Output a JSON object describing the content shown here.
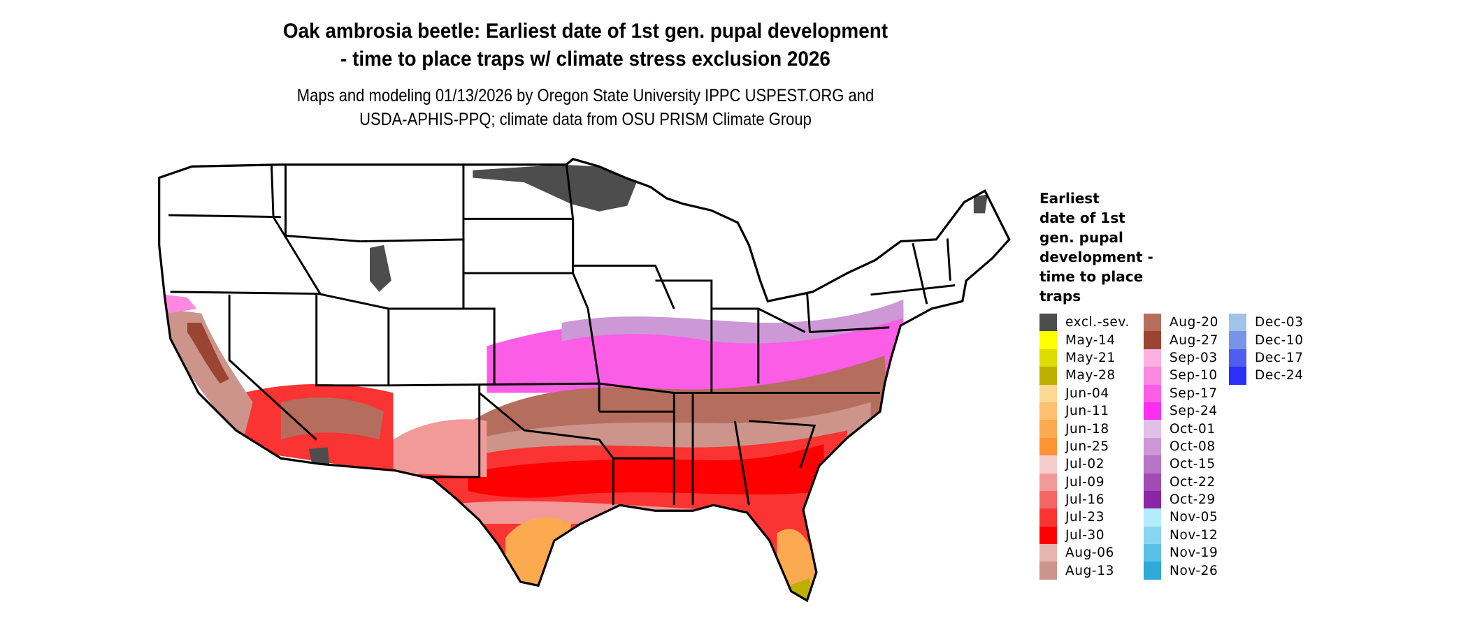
{
  "title": {
    "line1": "Oak ambrosia beetle: Earliest date of 1st gen. pupal development",
    "line2": "- time to place traps w/ climate stress exclusion 2026"
  },
  "subtitle": {
    "line1": "Maps and modeling 01/13/2026 by Oregon State University IPPC USPEST.ORG and",
    "line2": "USDA-APHIS-PPQ; climate data from OSU PRISM Climate Group"
  },
  "legend": {
    "title": [
      "Earliest",
      "date of 1st",
      "gen. pupal",
      "development -",
      "time to place",
      "traps"
    ],
    "items": [
      {
        "label": "excl.-sev.",
        "color": "#4d4d4d"
      },
      {
        "label": "May-14",
        "color": "#ffff00"
      },
      {
        "label": "May-21",
        "color": "#dddd00"
      },
      {
        "label": "May-28",
        "color": "#bfb000"
      },
      {
        "label": "Jun-04",
        "color": "#fdd890"
      },
      {
        "label": "Jun-11",
        "color": "#fdc070"
      },
      {
        "label": "Jun-18",
        "color": "#fcaa50"
      },
      {
        "label": "Jun-25",
        "color": "#fc9433"
      },
      {
        "label": "Jul-02",
        "color": "#f5cccc"
      },
      {
        "label": "Jul-09",
        "color": "#f29999"
      },
      {
        "label": "Jul-16",
        "color": "#f56666"
      },
      {
        "label": "Jul-23",
        "color": "#fa3333"
      },
      {
        "label": "Jul-30",
        "color": "#ff0000"
      },
      {
        "label": "Aug-06",
        "color": "#e6b5ae"
      },
      {
        "label": "Aug-13",
        "color": "#cc948a"
      },
      {
        "label": "Aug-20",
        "color": "#b56e5e"
      },
      {
        "label": "Aug-27",
        "color": "#9a4532"
      },
      {
        "label": "Sep-03",
        "color": "#fcb0e0"
      },
      {
        "label": "Sep-10",
        "color": "#fc88e0"
      },
      {
        "label": "Sep-17",
        "color": "#fc5de6"
      },
      {
        "label": "Sep-24",
        "color": "#fc2ef0"
      },
      {
        "label": "Oct-01",
        "color": "#e0c0e6"
      },
      {
        "label": "Oct-08",
        "color": "#cc99d6"
      },
      {
        "label": "Oct-15",
        "color": "#b775c6"
      },
      {
        "label": "Oct-22",
        "color": "#a04cb4"
      },
      {
        "label": "Oct-29",
        "color": "#8a26a6"
      },
      {
        "label": "Nov-05",
        "color": "#b3ecfc"
      },
      {
        "label": "Nov-12",
        "color": "#88d6f2"
      },
      {
        "label": "Nov-19",
        "color": "#5cbfe6"
      },
      {
        "label": "Nov-26",
        "color": "#2fa8da"
      },
      {
        "label": "Dec-03",
        "color": "#a0c4e6"
      },
      {
        "label": "Dec-10",
        "color": "#7894e8"
      },
      {
        "label": "Dec-17",
        "color": "#4d5ef0"
      },
      {
        "label": "Dec-24",
        "color": "#2a2ffa"
      }
    ]
  }
}
